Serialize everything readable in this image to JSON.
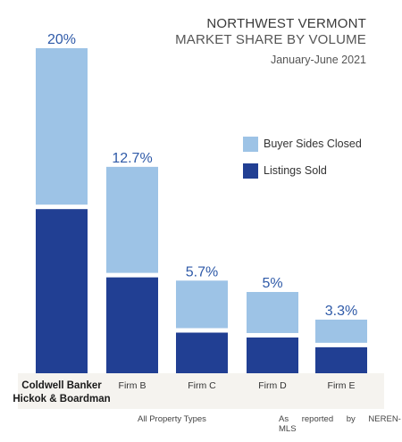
{
  "title": {
    "line1": "NORTHWEST VERMONT",
    "line2": "MARKET SHARE BY VOLUME",
    "subtitle": "January-June 2021"
  },
  "legend": [
    {
      "label": "Buyer Sides Closed",
      "color": "#9dc3e6"
    },
    {
      "label": "Listings Sold",
      "color": "#213f93"
    }
  ],
  "footer": {
    "left": "All Property Types",
    "right": "As reported by NEREN-MLS"
  },
  "colors": {
    "buyer": "#9dc3e6",
    "listings": "#213f93",
    "label_band": "#f5f3ef",
    "value_label": "#2f5aa8"
  },
  "chart_data": {
    "type": "bar",
    "stacked": true,
    "categories": [
      "Coldwell Banker\nHickok & Boardman",
      "Firm B",
      "Firm C",
      "Firm D",
      "Firm E"
    ],
    "totals_labels": [
      "20%",
      "12.7%",
      "5.7%",
      "5%",
      "3.3%"
    ],
    "totals": [
      20,
      12.7,
      5.7,
      5.0,
      3.3
    ],
    "series": [
      {
        "name": "Listings Sold",
        "values": [
          10.1,
          5.9,
          2.5,
          2.2,
          1.6
        ]
      },
      {
        "name": "Buyer Sides Closed",
        "values": [
          9.9,
          6.8,
          3.2,
          2.8,
          1.7
        ]
      }
    ],
    "ylim": [
      0,
      20
    ],
    "highlight_category": 0
  }
}
